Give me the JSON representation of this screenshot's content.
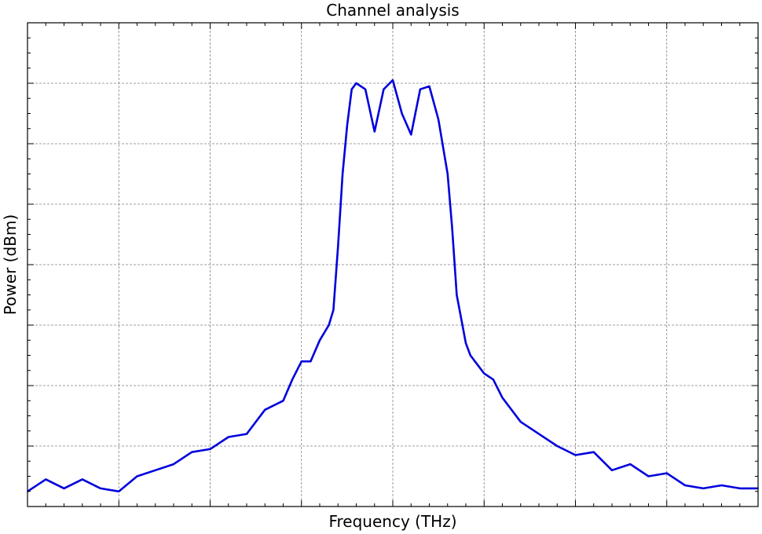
{
  "chart_data": {
    "type": "line",
    "title": "Channel analysis",
    "xlabel": "Frequency (THz)",
    "ylabel": "Power (dBm)",
    "grid": true,
    "legend": "none",
    "xlim": [
      -4,
      4
    ],
    "ylim": [
      0,
      8
    ],
    "x_major_ticks": [
      -3,
      -2,
      -1,
      0,
      1,
      2,
      3
    ],
    "y_major_ticks": [
      1,
      2,
      3,
      4,
      5,
      6,
      7
    ],
    "tick_labels_shown": false,
    "series": [
      {
        "color": "#0000dd",
        "x": [
          -4.0,
          -3.8,
          -3.6,
          -3.4,
          -3.2,
          -3.0,
          -2.8,
          -2.6,
          -2.4,
          -2.2,
          -2.0,
          -1.8,
          -1.6,
          -1.4,
          -1.2,
          -1.1,
          -1.0,
          -0.9,
          -0.8,
          -0.7,
          -0.65,
          -0.6,
          -0.55,
          -0.5,
          -0.45,
          -0.4,
          -0.3,
          -0.2,
          -0.1,
          0.0,
          0.1,
          0.2,
          0.3,
          0.4,
          0.5,
          0.6,
          0.65,
          0.7,
          0.75,
          0.8,
          0.85,
          0.9,
          1.0,
          1.1,
          1.2,
          1.4,
          1.6,
          1.8,
          2.0,
          2.2,
          2.4,
          2.6,
          2.8,
          3.0,
          3.2,
          3.4,
          3.6,
          3.8,
          4.0
        ],
        "y": [
          0.25,
          0.45,
          0.3,
          0.45,
          0.3,
          0.25,
          0.5,
          0.6,
          0.7,
          0.9,
          0.95,
          1.15,
          1.2,
          1.6,
          1.75,
          2.1,
          2.4,
          2.4,
          2.75,
          3.0,
          3.25,
          4.3,
          5.5,
          6.3,
          6.9,
          7.0,
          6.9,
          6.2,
          6.9,
          7.05,
          6.5,
          6.15,
          6.9,
          6.95,
          6.4,
          5.5,
          4.6,
          3.5,
          3.1,
          2.7,
          2.5,
          2.4,
          2.2,
          2.1,
          1.8,
          1.4,
          1.2,
          1.0,
          0.85,
          0.9,
          0.6,
          0.7,
          0.5,
          0.55,
          0.35,
          0.3,
          0.35,
          0.3,
          0.3
        ]
      }
    ]
  }
}
